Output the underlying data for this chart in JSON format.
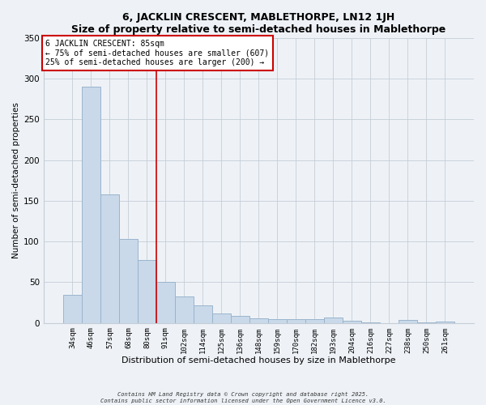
{
  "title": "6, JACKLIN CRESCENT, MABLETHORPE, LN12 1JH",
  "subtitle": "Size of property relative to semi-detached houses in Mablethorpe",
  "xlabel": "Distribution of semi-detached houses by size in Mablethorpe",
  "ylabel": "Number of semi-detached properties",
  "categories": [
    "34sqm",
    "46sqm",
    "57sqm",
    "68sqm",
    "80sqm",
    "91sqm",
    "102sqm",
    "114sqm",
    "125sqm",
    "136sqm",
    "148sqm",
    "159sqm",
    "170sqm",
    "182sqm",
    "193sqm",
    "204sqm",
    "216sqm",
    "227sqm",
    "238sqm",
    "250sqm",
    "261sqm"
  ],
  "values": [
    35,
    290,
    158,
    103,
    77,
    50,
    33,
    22,
    12,
    9,
    6,
    5,
    5,
    5,
    7,
    3,
    1,
    0,
    4,
    1,
    2
  ],
  "bar_color": "#c9d9ea",
  "bar_edge_color": "#9ab4cc",
  "grid_color": "#c5cdd6",
  "background_color": "#eef2f7",
  "vline_x_index": 4,
  "vline_color": "#cc0000",
  "annotation_title": "6 JACKLIN CRESCENT: 85sqm",
  "annotation_line1": "← 75% of semi-detached houses are smaller (607)",
  "annotation_line2": "25% of semi-detached houses are larger (200) →",
  "annotation_box_color": "#ffffff",
  "annotation_box_edge": "#cc0000",
  "ylim": [
    0,
    350
  ],
  "yticks": [
    0,
    50,
    100,
    150,
    200,
    250,
    300,
    350
  ],
  "footer1": "Contains HM Land Registry data © Crown copyright and database right 2025.",
  "footer2": "Contains public sector information licensed under the Open Government Licence v3.0."
}
